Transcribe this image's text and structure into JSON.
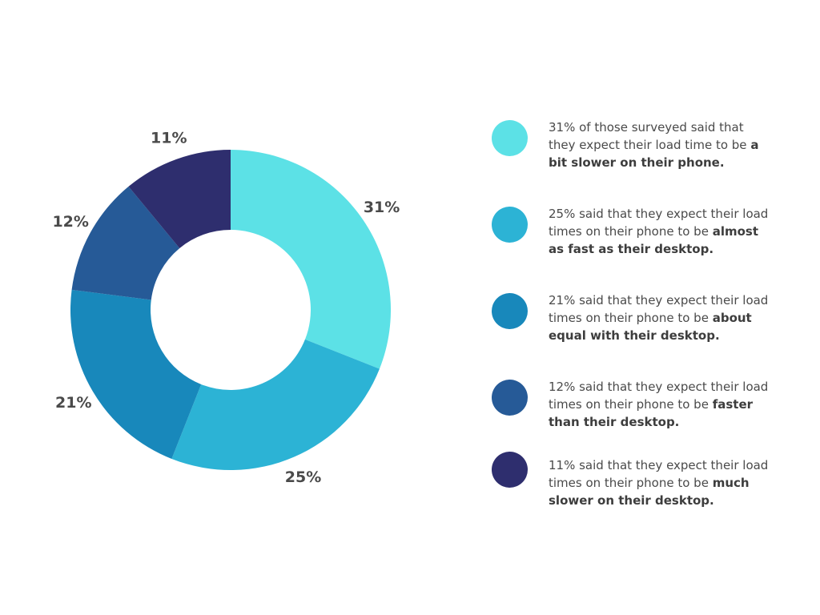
{
  "chart_data": {
    "type": "pie",
    "style": "donut",
    "slices": [
      {
        "label": "31%",
        "value": 31,
        "color": "#5ce1e6"
      },
      {
        "label": "25%",
        "value": 25,
        "color": "#2cb3d5"
      },
      {
        "label": "21%",
        "value": 21,
        "color": "#1888bb"
      },
      {
        "label": "12%",
        "value": 12,
        "color": "#265a97"
      },
      {
        "label": "11%",
        "value": 11,
        "color": "#2e2e6e"
      }
    ]
  },
  "legend": [
    {
      "color": "#5ce1e6",
      "text": "31% of those surveyed said that they expect their load time to be ",
      "bold": "a bit slower on their phone."
    },
    {
      "color": "#2cb3d5",
      "text": "25% said that they expect their load times on their phone to be ",
      "bold": "almost as fast as their desktop."
    },
    {
      "color": "#1888bb",
      "text": "21% said that they expect their load times on their phone to be ",
      "bold": "about equal with their desktop."
    },
    {
      "color": "#265a97",
      "text": "12% said that they expect their load times on their phone to be ",
      "bold": "faster than their desktop."
    },
    {
      "color": "#2e2e6e",
      "text": "11% said that they expect their load times on their phone to be ",
      "bold": "much slower on their desktop."
    }
  ]
}
